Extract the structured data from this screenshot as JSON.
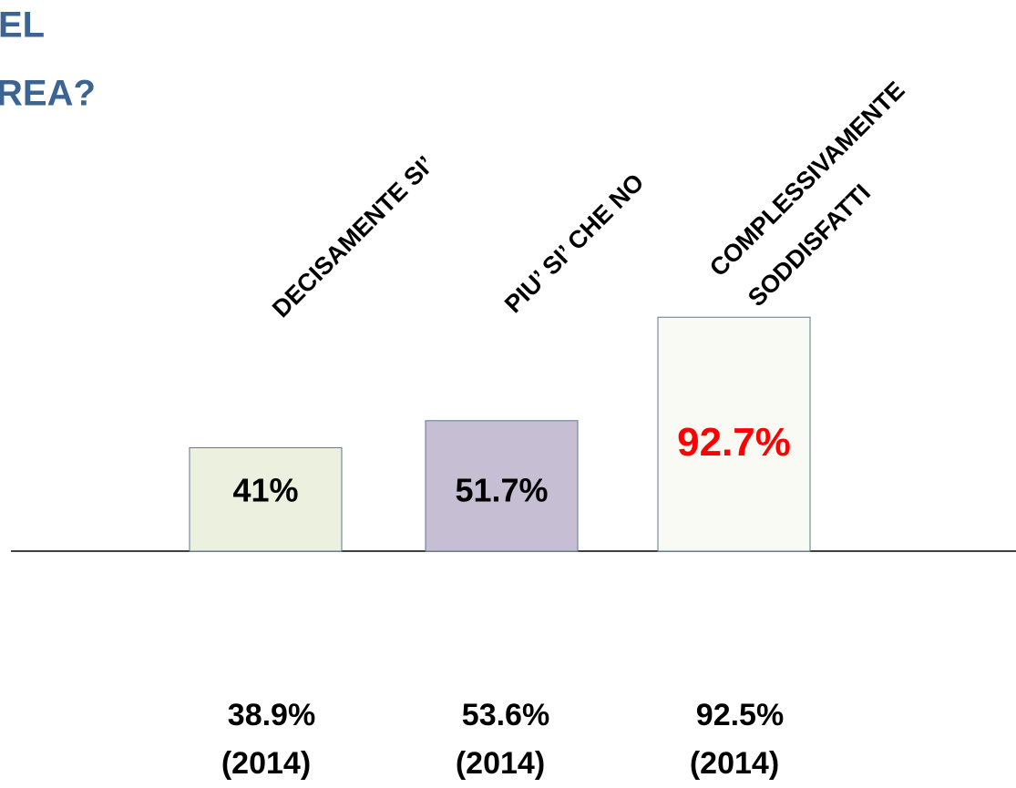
{
  "chart_data": {
    "type": "bar",
    "title": [
      "EL",
      "REA?"
    ],
    "categories": [
      [
        "DECISAMENTE SI’"
      ],
      [
        "PIU’ SI’ CHE NO"
      ],
      [
        "COMPLESSIVAMENTE",
        "SODDISFATTI"
      ]
    ],
    "values": [
      41,
      51.7,
      92.7
    ],
    "value_labels": [
      "41%",
      "51.7%",
      "92.7%"
    ],
    "colors": [
      "#ebf1de",
      "#c6bfd4",
      "#f8faf3"
    ],
    "label_colors": [
      "#000000",
      "#000000",
      "#ff0000"
    ],
    "ylim": [
      0,
      100
    ],
    "previous": {
      "values": [
        38.9,
        53.6,
        92.5
      ],
      "value_labels": [
        "38.9%",
        "53.6%",
        "92.5%"
      ],
      "label": "(2014)"
    }
  }
}
